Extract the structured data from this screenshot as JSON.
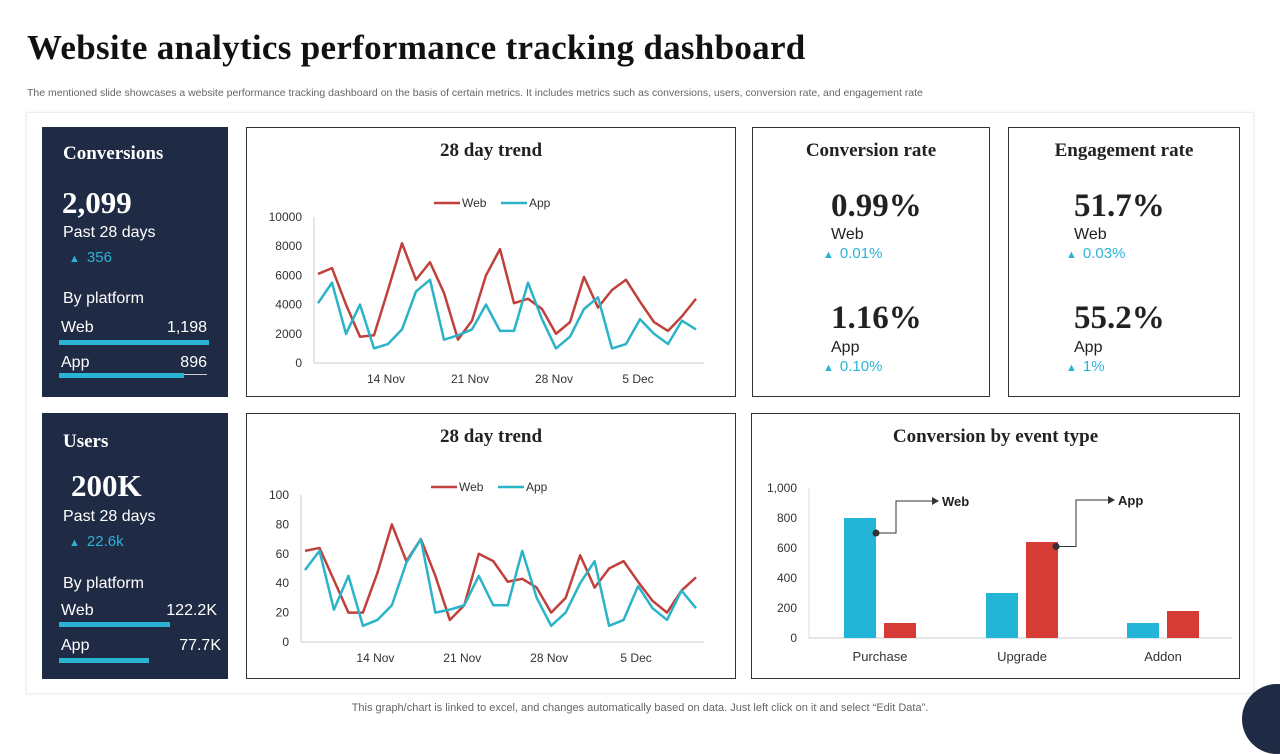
{
  "header": {
    "title": "Website analytics performance tracking dashboard",
    "subtitle": "The mentioned slide showcases a website performance tracking dashboard on the basis of certain metrics. It includes metrics such as conversions, users, conversion rate, and engagement rate"
  },
  "conversions": {
    "title": "Conversions",
    "value": "2,099",
    "period": "Past 28 days",
    "delta": "356",
    "by_platform": "By platform",
    "web_label": "Web",
    "web_value": "1,198",
    "web_fill": 1.0,
    "app_label": "App",
    "app_value": "896",
    "app_fill": 0.83
  },
  "users": {
    "title": "Users",
    "value": "200K",
    "period": "Past 28 days",
    "delta": "22.6k",
    "by_platform": "By platform",
    "web_label": "Web",
    "web_value": "122.2K",
    "web_fill": 0.74,
    "app_label": "App",
    "app_value": "77.7K",
    "app_fill": 0.6
  },
  "conversion_rate": {
    "title": "Conversion  rate",
    "web_value": "0.99%",
    "web_label": "Web",
    "web_delta": "0.01%",
    "app_value": "1.16%",
    "app_label": "App",
    "app_delta": "0.10%"
  },
  "engagement_rate": {
    "title": "Engagement rate",
    "web_value": "51.7%",
    "web_label": "Web",
    "web_delta": "0.03%",
    "app_value": "55.2%",
    "app_label": "App",
    "app_delta": "1%"
  },
  "colors": {
    "web": "#c0403c",
    "app": "#2bb3c8",
    "bar_blue": "#22b5d8",
    "bar_red": "#d63b35",
    "dark": "#1f2a44"
  },
  "footer": "This graph/chart is linked to excel,  and changes automatically based on data. Just left click on it and select “Edit Data”.",
  "chart_data": [
    {
      "type": "line",
      "title": "28 day trend",
      "ylim": [
        0,
        10000
      ],
      "yticks": [
        "10000",
        "8000",
        "6000",
        "4000",
        "2000",
        "0"
      ],
      "xticks": [
        "14 Nov",
        "21 Nov",
        "28 Nov",
        "5 Dec"
      ],
      "xtick_index": [
        5,
        11,
        17,
        23
      ],
      "legend": "top",
      "series": [
        {
          "name": "Web",
          "values": [
            6100,
            6500,
            4000,
            1800,
            1900,
            5000,
            8200,
            5700,
            6900,
            4800,
            1600,
            2900,
            6000,
            7800,
            4100,
            4400,
            3700,
            2000,
            2800,
            5900,
            3800,
            5000,
            5700,
            4200,
            2800,
            2200,
            3200,
            4400
          ]
        },
        {
          "name": "App",
          "values": [
            4100,
            5500,
            2000,
            4000,
            1000,
            1300,
            2300,
            4900,
            5700,
            1600,
            1900,
            2300,
            4000,
            2200,
            2200,
            5500,
            3000,
            1000,
            1800,
            3700,
            4500,
            1000,
            1300,
            3000,
            2000,
            1300,
            2900,
            2300
          ]
        }
      ]
    },
    {
      "type": "line",
      "title": "28 day trend",
      "ylim": [
        0,
        100
      ],
      "yticks": [
        "100",
        "80",
        "60",
        "40",
        "20",
        "0"
      ],
      "xticks": [
        "14 Nov",
        "21 Nov",
        "28 Nov",
        "5 Dec"
      ],
      "xtick_index": [
        5,
        11,
        17,
        23
      ],
      "legend": "top",
      "series": [
        {
          "name": "Web",
          "values": [
            62,
            64,
            42,
            20,
            20,
            47,
            80,
            55,
            70,
            45,
            15,
            25,
            60,
            55,
            41,
            43,
            37,
            20,
            30,
            59,
            37,
            50,
            55,
            41,
            28,
            20,
            35,
            44
          ]
        },
        {
          "name": "App",
          "values": [
            49,
            62,
            22,
            45,
            11,
            15,
            25,
            54,
            70,
            20,
            22,
            25,
            45,
            25,
            25,
            62,
            30,
            11,
            20,
            40,
            55,
            11,
            15,
            38,
            23,
            15,
            35,
            23
          ]
        }
      ]
    },
    {
      "type": "bar",
      "title": "Conversion  by event type",
      "categories": [
        "Purchase",
        "Upgrade",
        "Addon"
      ],
      "ylim": [
        0,
        1000
      ],
      "yticks": [
        "1,000",
        "800",
        "600",
        "400",
        "200",
        "0"
      ],
      "series": [
        {
          "name": "Web",
          "values": [
            800,
            300,
            100
          ]
        },
        {
          "name": "App",
          "values": [
            100,
            640,
            180
          ]
        }
      ],
      "annotations": [
        "Web",
        "App"
      ]
    }
  ]
}
